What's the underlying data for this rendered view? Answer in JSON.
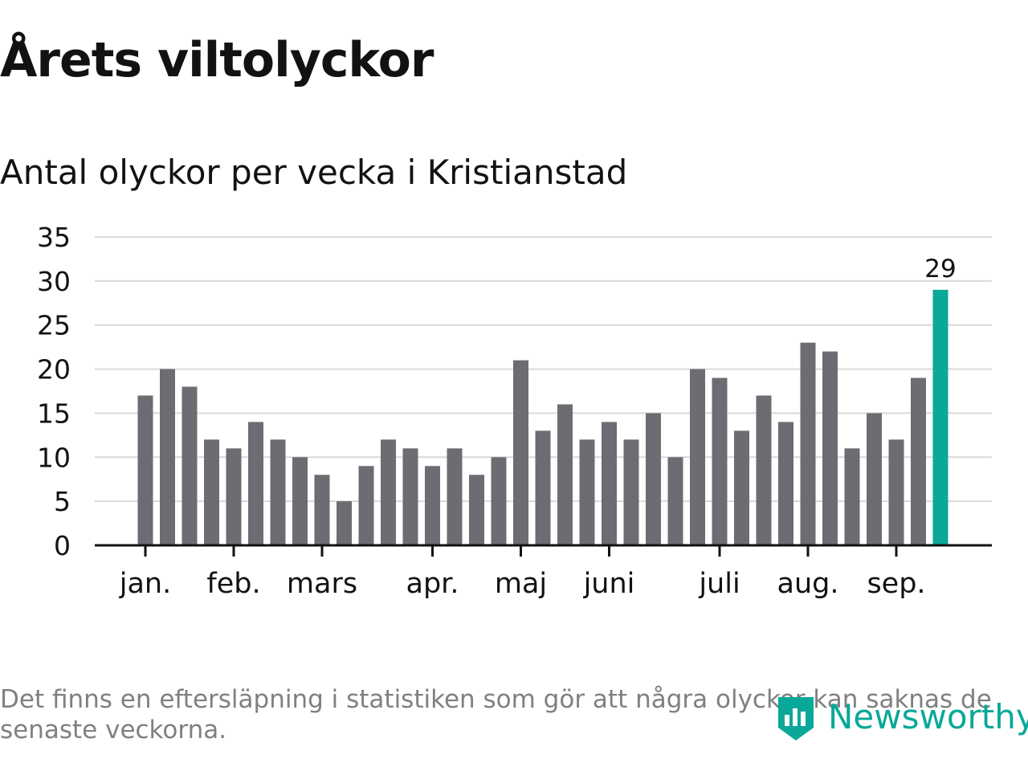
{
  "title": "Årets viltolyckor",
  "subtitle": "Antal olyckor per vecka i Kristianstad",
  "footnote": "Det finns en eftersläpning i statistiken som gör att några olyckor kan saknas de senaste veckorna.",
  "brand": {
    "name": "Newsworthy",
    "icon": "bar-chart-logo-icon",
    "color": "#0aa898"
  },
  "colors": {
    "bar": "#6d6c72",
    "highlight": "#0aa898",
    "grid": "#d9d9d9",
    "axis": "#121212"
  },
  "chart_data": {
    "type": "bar",
    "title": "Årets viltolyckor",
    "subtitle": "Antal olyckor per vecka i Kristianstad",
    "xlabel": "",
    "ylabel": "",
    "ylim": [
      0,
      35
    ],
    "yticks": [
      0,
      5,
      10,
      15,
      20,
      25,
      30,
      35
    ],
    "grid": true,
    "values": [
      17,
      20,
      18,
      12,
      11,
      14,
      12,
      10,
      8,
      5,
      9,
      12,
      11,
      9,
      11,
      8,
      10,
      21,
      13,
      16,
      12,
      14,
      12,
      15,
      10,
      20,
      19,
      13,
      17,
      14,
      23,
      22,
      11,
      15,
      12,
      19,
      29
    ],
    "highlight_index": 36,
    "data_labels": [
      {
        "index": 36,
        "text": "29"
      }
    ],
    "month_ticks": [
      {
        "label": "jan.",
        "week_index": 0
      },
      {
        "label": "feb.",
        "week_index": 4
      },
      {
        "label": "mars",
        "week_index": 8
      },
      {
        "label": "apr.",
        "week_index": 13
      },
      {
        "label": "maj",
        "week_index": 17
      },
      {
        "label": "juni",
        "week_index": 21
      },
      {
        "label": "juli",
        "week_index": 26
      },
      {
        "label": "aug.",
        "week_index": 30
      },
      {
        "label": "sep.",
        "week_index": 34
      }
    ]
  }
}
